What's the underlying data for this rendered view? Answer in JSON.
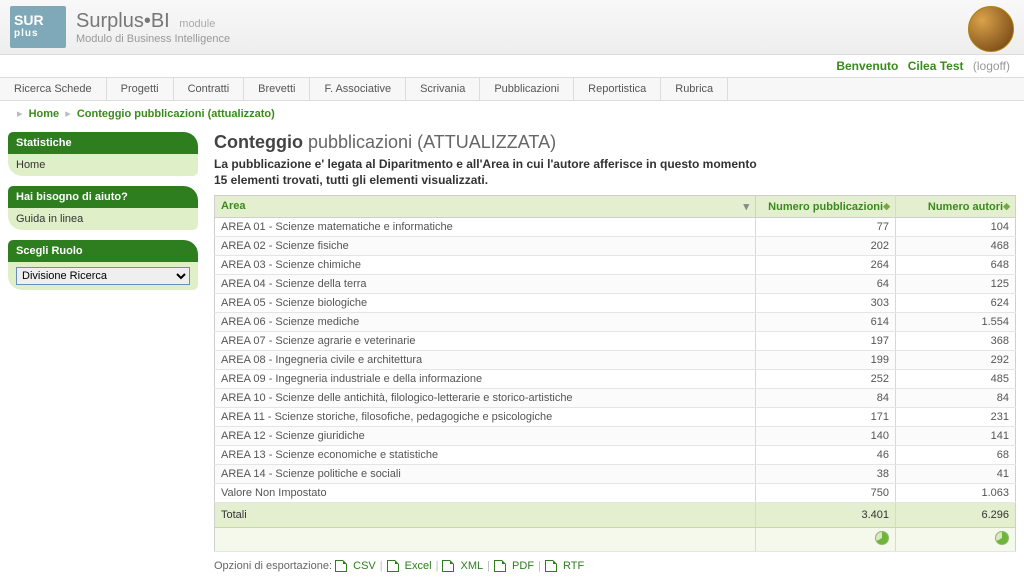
{
  "brand": {
    "logo_top": "SUR",
    "logo_bottom": "plus",
    "title": "Surplus•BI",
    "module_tag": "module",
    "subtitle": "Modulo di Business Intelligence"
  },
  "welcome": {
    "label": "Benvenuto",
    "user": "Cilea Test",
    "logoff": "(logoff)"
  },
  "menu": [
    "Ricerca Schede",
    "Progetti",
    "Contratti",
    "Brevetti",
    "F. Associative",
    "Scrivania",
    "Pubblicazioni",
    "Reportistica",
    "Rubrica"
  ],
  "breadcrumb": {
    "home": "Home",
    "current": "Conteggio pubblicazioni (attualizzato)"
  },
  "sidebar": {
    "stats": {
      "title": "Statistiche",
      "items": [
        "Home"
      ]
    },
    "help": {
      "title": "Hai bisogno di aiuto?",
      "items": [
        "Guida in linea"
      ]
    },
    "role": {
      "title": "Scegli Ruolo",
      "selected": "Divisione Ricerca"
    }
  },
  "page": {
    "title_bold": "Conteggio",
    "title_rest": "pubblicazioni (ATTUALIZZATA)",
    "subtitle1": "La pubblicazione e' legata al Diparitmento e all'Area in cui l'autore afferisce in questo momento",
    "subtitle2": "15 elementi trovati, tutti gli elementi visualizzati."
  },
  "table": {
    "columns": {
      "area": "Area",
      "pub": "Numero pubblicazioni",
      "aut": "Numero autori"
    },
    "rows": [
      {
        "area": "AREA 01 - Scienze matematiche e informatiche",
        "pub": "77",
        "aut": "104"
      },
      {
        "area": "AREA 02 - Scienze fisiche",
        "pub": "202",
        "aut": "468"
      },
      {
        "area": "AREA 03 - Scienze chimiche",
        "pub": "264",
        "aut": "648"
      },
      {
        "area": "AREA 04 - Scienze della terra",
        "pub": "64",
        "aut": "125"
      },
      {
        "area": "AREA 05 - Scienze biologiche",
        "pub": "303",
        "aut": "624"
      },
      {
        "area": "AREA 06 - Scienze mediche",
        "pub": "614",
        "aut": "1.554"
      },
      {
        "area": "AREA 07 - Scienze agrarie e veterinarie",
        "pub": "197",
        "aut": "368"
      },
      {
        "area": "AREA 08 - Ingegneria civile e architettura",
        "pub": "199",
        "aut": "292"
      },
      {
        "area": "AREA 09 - Ingegneria industriale e della informazione",
        "pub": "252",
        "aut": "485"
      },
      {
        "area": "AREA 10 - Scienze delle antichità, filologico-letterarie e storico-artistiche",
        "pub": "84",
        "aut": "84"
      },
      {
        "area": "AREA 11 - Scienze storiche, filosofiche, pedagogiche e psicologiche",
        "pub": "171",
        "aut": "231"
      },
      {
        "area": "AREA 12 - Scienze giuridiche",
        "pub": "140",
        "aut": "141"
      },
      {
        "area": "AREA 13 - Scienze economiche e statistiche",
        "pub": "46",
        "aut": "68"
      },
      {
        "area": "AREA 14 - Scienze politiche e sociali",
        "pub": "38",
        "aut": "41"
      },
      {
        "area": "Valore Non Impostato",
        "pub": "750",
        "aut": "1.063"
      }
    ],
    "totals": {
      "label": "Totali",
      "pub": "3.401",
      "aut": "6.296"
    }
  },
  "exports": {
    "label": "Opzioni di esportazione:",
    "items": [
      "CSV",
      "Excel",
      "XML",
      "PDF",
      "RTF"
    ]
  }
}
